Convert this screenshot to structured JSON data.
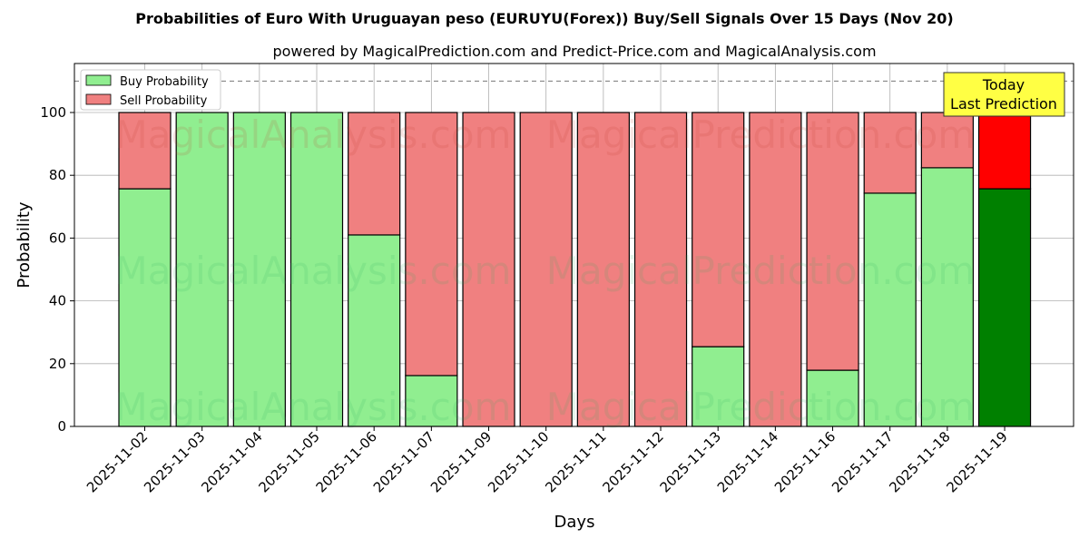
{
  "chart_data": {
    "type": "bar",
    "stacked": true,
    "title": "Probabilities of Euro With Uruguayan peso (EURUYU(Forex)) Buy/Sell Signals Over 15 Days (Nov 20)",
    "subtitle": "powered by MagicalPrediction.com and Predict-Price.com and MagicalAnalysis.com",
    "xlabel": "Days",
    "ylabel": "Probability",
    "ylim": [
      0,
      115
    ],
    "yticks": [
      0,
      20,
      40,
      60,
      80,
      100
    ],
    "grid": true,
    "reference_line": 110,
    "categories": [
      "2025-11-02",
      "2025-11-03",
      "2025-11-04",
      "2025-11-05",
      "2025-11-06",
      "2025-11-07",
      "2025-11-09",
      "2025-11-10",
      "2025-11-11",
      "2025-11-12",
      "2025-11-13",
      "2025-11-14",
      "2025-11-16",
      "2025-11-17",
      "2025-11-18",
      "2025-11-19"
    ],
    "series": [
      {
        "name": "Buy Probability",
        "color": "#90ee90",
        "values": [
          75.7,
          100,
          100,
          100,
          61.0,
          16.2,
          0,
          0,
          0,
          0,
          25.4,
          0,
          17.9,
          74.3,
          82.4,
          75.7
        ]
      },
      {
        "name": "Sell Probability",
        "color": "#f08080",
        "values": [
          24.3,
          0,
          0,
          0,
          39.0,
          83.8,
          100,
          100,
          100,
          100,
          74.6,
          100,
          82.1,
          25.7,
          17.6,
          24.3
        ]
      }
    ],
    "highlight": {
      "buy_color": "#008000",
      "sell_color": "#ff0000"
    },
    "legend_position": "top-left",
    "annotation": {
      "line1": "Today",
      "line2": "Last Prediction",
      "color": "#ffff44"
    },
    "watermarks": [
      "MagicalAnalysis.com",
      "MagicalPrediction.com"
    ]
  }
}
